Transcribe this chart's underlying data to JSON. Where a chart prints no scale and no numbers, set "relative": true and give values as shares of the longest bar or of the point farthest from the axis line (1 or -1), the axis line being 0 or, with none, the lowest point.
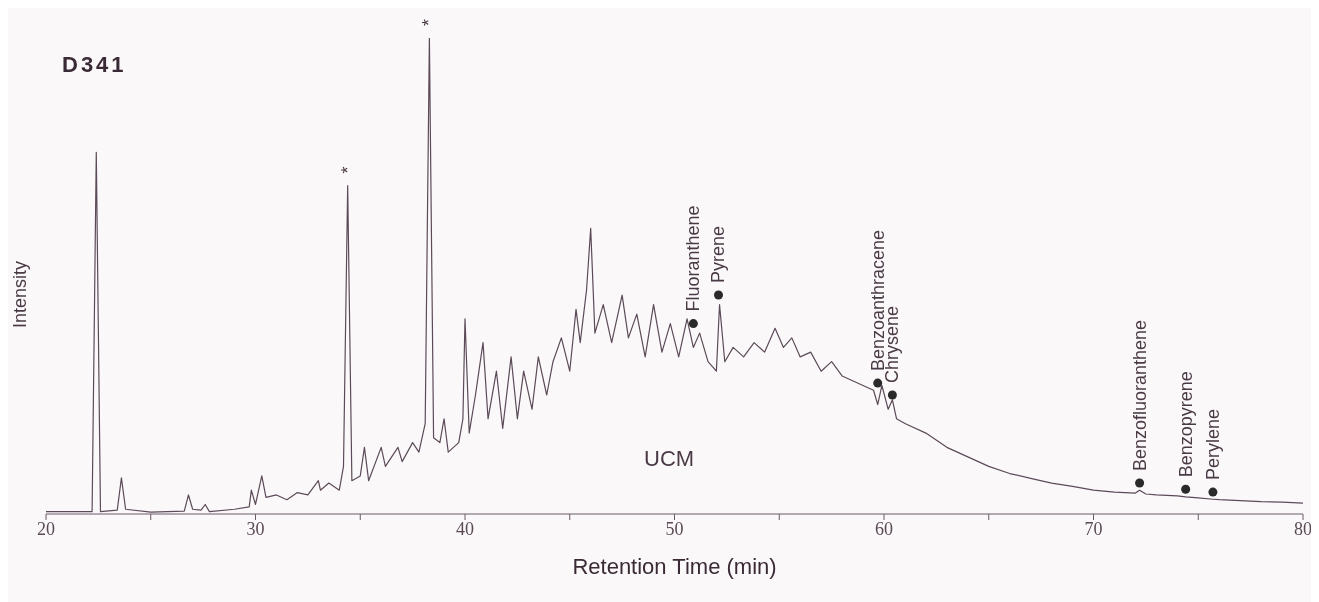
{
  "chart_data": {
    "type": "line",
    "title": "D341",
    "xlabel": "Retention Time (min)",
    "ylabel": "Intensity",
    "relative": true,
    "xlim": [
      20,
      80
    ],
    "xticks": [
      20,
      {
        "value": 25,
        "label": null
      },
      30,
      {
        "value": 35,
        "label": null
      },
      40,
      {
        "value": 45,
        "label": null
      },
      50,
      {
        "value": 55,
        "label": null
      },
      60,
      {
        "value": 65,
        "label": null
      },
      70,
      {
        "value": 75,
        "label": null
      },
      80
    ],
    "grid": false,
    "series": [
      {
        "color": "#5b4b58",
        "marker": "none",
        "x": [
          20,
          22.2,
          22.4,
          22.6,
          23.4,
          23.6,
          23.8,
          25,
          26.6,
          26.8,
          27,
          27.4,
          27.6,
          27.8,
          29,
          29.7,
          29.8,
          30,
          30.3,
          30.5,
          31,
          31.5,
          32,
          32.5,
          33,
          33.1,
          33.5,
          34,
          34.2,
          34.4,
          34.6,
          35,
          35.2,
          35.4,
          36,
          36.2,
          36.8,
          37,
          37.5,
          37.8,
          38.1,
          38.3,
          38.5,
          38.8,
          39,
          39.2,
          39.7,
          39.9,
          40,
          40.2,
          40.5,
          40.86,
          41.1,
          41.5,
          41.8,
          42.2,
          42.5,
          42.8,
          43.2,
          43.5,
          43.9,
          44.2,
          44.6,
          45,
          45.3,
          45.5,
          45.8,
          46,
          46.2,
          46.6,
          47,
          47.5,
          47.8,
          48.2,
          48.6,
          49,
          49.4,
          49.8,
          50.2,
          50.6,
          50.9,
          51.2,
          51.6,
          52,
          52.15,
          52.4,
          52.8,
          53.3,
          53.8,
          54.3,
          54.8,
          55.2,
          55.6,
          56,
          56.5,
          57,
          57.5,
          58,
          58.5,
          59,
          59.5,
          59.7,
          59.9,
          60.2,
          60.4,
          60.6,
          61,
          62,
          63,
          64,
          65,
          66,
          67,
          68,
          69,
          70,
          71,
          72,
          72.2,
          72.5,
          73,
          74,
          74.4,
          75,
          75.7,
          76,
          77,
          78,
          79,
          80
        ],
        "values": [
          0.005,
          0.005,
          0.76,
          0.005,
          0.008,
          0.076,
          0.01,
          0.004,
          0.006,
          0.04,
          0.01,
          0.008,
          0.02,
          0.005,
          0.01,
          0.015,
          0.05,
          0.02,
          0.08,
          0.035,
          0.04,
          0.03,
          0.045,
          0.04,
          0.07,
          0.05,
          0.065,
          0.05,
          0.1,
          0.69,
          0.07,
          0.08,
          0.14,
          0.07,
          0.14,
          0.1,
          0.14,
          0.11,
          0.15,
          0.13,
          0.19,
          1,
          0.16,
          0.15,
          0.2,
          0.13,
          0.15,
          0.2,
          0.41,
          0.17,
          0.25,
          0.36,
          0.2,
          0.3,
          0.18,
          0.33,
          0.2,
          0.3,
          0.22,
          0.33,
          0.25,
          0.32,
          0.37,
          0.3,
          0.43,
          0.36,
          0.47,
          0.6,
          0.38,
          0.44,
          0.36,
          0.46,
          0.37,
          0.42,
          0.33,
          0.44,
          0.34,
          0.4,
          0.33,
          0.41,
          0.35,
          0.38,
          0.32,
          0.3,
          0.44,
          0.32,
          0.35,
          0.33,
          0.36,
          0.34,
          0.39,
          0.35,
          0.37,
          0.33,
          0.34,
          0.3,
          0.32,
          0.29,
          0.28,
          0.27,
          0.26,
          0.23,
          0.27,
          0.22,
          0.24,
          0.2,
          0.19,
          0.17,
          0.14,
          0.12,
          0.1,
          0.085,
          0.075,
          0.065,
          0.058,
          0.05,
          0.046,
          0.044,
          0.05,
          0.042,
          0.04,
          0.038,
          0.036,
          0.034,
          0.031,
          0.03,
          0.028,
          0.026,
          0.025,
          0.023
        ]
      },
      {
        "type": "scatter",
        "color": "#2a2a2a",
        "marker": "circle",
        "x": [
          50.9,
          52.1,
          59.7,
          60.4,
          72.2,
          74.4,
          75.7
        ],
        "values": [
          0.4,
          0.46,
          0.275,
          0.25,
          0.065,
          0.052,
          0.046
        ]
      }
    ],
    "annotations": [
      {
        "text": "*",
        "x": 34.4,
        "y": 0.69
      },
      {
        "text": "*",
        "x": 38.3,
        "y": 1
      },
      {
        "text": "Fluoranthene",
        "x": 50.9,
        "y": 0.4
      },
      {
        "text": "Pyrene",
        "x": 52.1,
        "y": 0.46
      },
      {
        "text": "Benzoanthracene",
        "x": 59.7,
        "y": 0.275
      },
      {
        "text": "Chrysene",
        "x": 60.4,
        "y": 0.25
      },
      {
        "text": "Benzofluoranthene",
        "x": 72.2,
        "y": 0.065
      },
      {
        "text": "Benzopyrene",
        "x": 74.4,
        "y": 0.052
      },
      {
        "text": "Perylene",
        "x": 75.7,
        "y": 0.046
      },
      "UCM"
    ]
  }
}
